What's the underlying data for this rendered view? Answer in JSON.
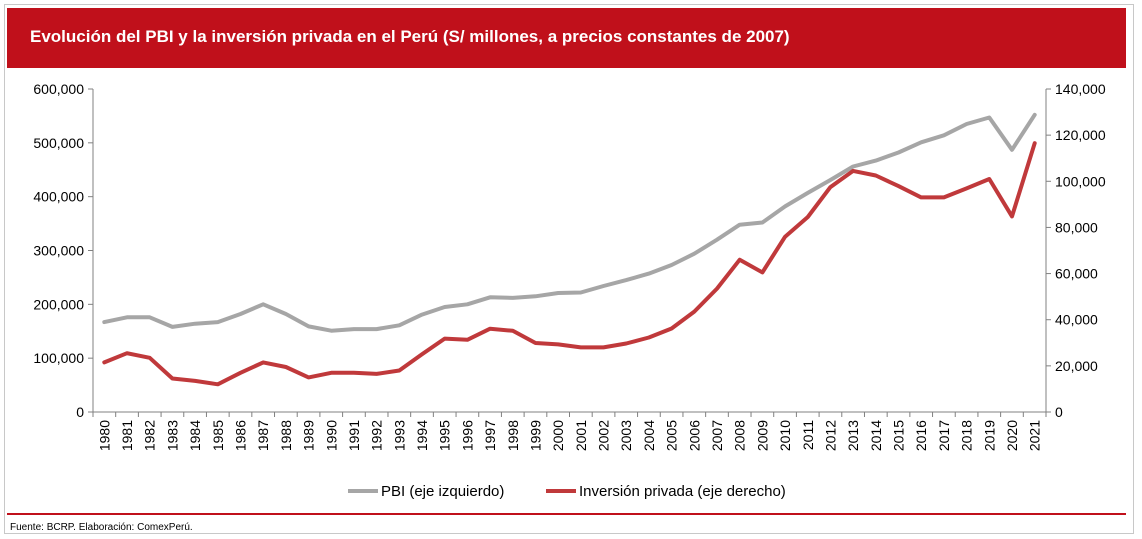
{
  "header": {
    "title": "Evolución del PBI y la inversión privada en el Perú (S/ millones, a precios constantes de 2007)"
  },
  "footer": {
    "source": "Fuente: BCRP. Elaboración: ComexPerú."
  },
  "colors": {
    "title_background": "#c0101b",
    "pbi_line": "#a6a6a6",
    "inversion_line": "#c0393b",
    "axis": "#808080"
  },
  "chart_data": {
    "type": "line",
    "x": [
      "1980",
      "1981",
      "1982",
      "1983",
      "1984",
      "1985",
      "1986",
      "1987",
      "1988",
      "1989",
      "1990",
      "1991",
      "1992",
      "1993",
      "1994",
      "1995",
      "1996",
      "1997",
      "1998",
      "1999",
      "2000",
      "2001",
      "2002",
      "2003",
      "2004",
      "2005",
      "2006",
      "2007",
      "2008",
      "2009",
      "2010",
      "2011",
      "2012",
      "2013",
      "2014",
      "2015",
      "2016",
      "2017",
      "2018",
      "2019",
      "2020",
      "2021"
    ],
    "series": [
      {
        "name": "PBI (eje izquierdo)",
        "axis": "left",
        "values": [
          167000,
          176000,
          176000,
          158000,
          164000,
          167000,
          182000,
          200000,
          182000,
          159000,
          151000,
          154000,
          154000,
          161000,
          181000,
          195000,
          200000,
          213000,
          212000,
          215000,
          221000,
          222000,
          234000,
          245000,
          257000,
          273000,
          294000,
          320000,
          348000,
          352000,
          382000,
          407000,
          431000,
          456000,
          467000,
          482000,
          501000,
          514000,
          535000,
          547000,
          487000,
          552000
        ]
      },
      {
        "name": "Inversión privada (eje derecho)",
        "axis": "right",
        "values": [
          21500,
          25500,
          23500,
          14500,
          13500,
          12000,
          17000,
          21500,
          19500,
          15000,
          17000,
          17000,
          16500,
          18000,
          25000,
          31800,
          31300,
          36100,
          35200,
          29900,
          29300,
          28000,
          28000,
          29700,
          32300,
          36200,
          43500,
          53500,
          66000,
          60500,
          76000,
          84500,
          97500,
          104500,
          102500,
          97900,
          93000,
          93000,
          96900,
          101000,
          84800,
          116500
        ]
      }
    ],
    "left_axis": {
      "ylim": [
        0,
        600000
      ],
      "ticks": [
        0,
        100000,
        200000,
        300000,
        400000,
        500000,
        600000
      ],
      "tick_labels": [
        "0",
        "100,000",
        "200,000",
        "300,000",
        "400,000",
        "500,000",
        "600,000"
      ]
    },
    "right_axis": {
      "ylim": [
        0,
        140000
      ],
      "ticks": [
        0,
        20000,
        40000,
        60000,
        80000,
        100000,
        120000,
        140000
      ],
      "tick_labels": [
        "0",
        "20,000",
        "40,000",
        "60,000",
        "80,000",
        "100,000",
        "120,000",
        "140,000"
      ]
    },
    "grid": false,
    "legend_placement": "bottom"
  }
}
